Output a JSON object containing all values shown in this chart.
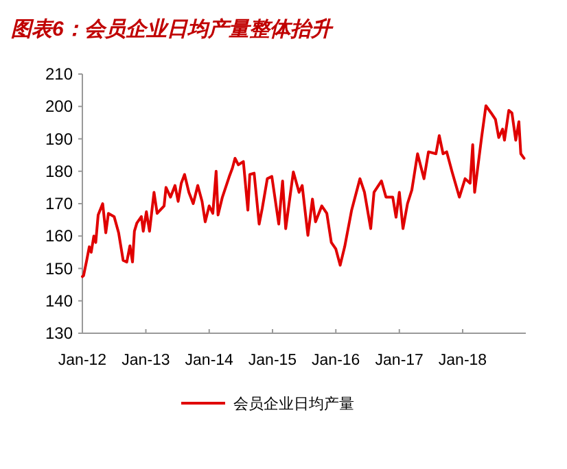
{
  "chart_data": {
    "type": "line",
    "title": "图表6：会员企业日均产量整体抬升",
    "x": [
      "2012-01-01",
      "2012-01-08",
      "2012-01-26",
      "2012-02-10",
      "2012-02-21",
      "2012-03-07",
      "2012-03-18",
      "2012-04-01",
      "2012-04-27",
      "2012-05-15",
      "2012-05-30",
      "2012-07-02",
      "2012-07-28",
      "2012-08-23",
      "2012-09-13",
      "2012-10-01",
      "2012-10-16",
      "2012-10-27",
      "2012-11-10",
      "2012-12-06",
      "2012-12-17",
      "2013-01-04",
      "2013-01-22",
      "2013-02-17",
      "2013-03-07",
      "2013-04-16",
      "2013-04-27",
      "2013-05-23",
      "2013-06-18",
      "2013-07-06",
      "2013-07-24",
      "2013-08-12",
      "2013-09-06",
      "2013-10-01",
      "2013-10-27",
      "2013-11-21",
      "2013-12-09",
      "2014-01-01",
      "2014-01-22",
      "2014-02-10",
      "2014-02-21",
      "2014-03-18",
      "2014-04-27",
      "2014-05-15",
      "2014-05-30",
      "2014-06-18",
      "2014-07-17",
      "2014-08-12",
      "2014-08-23",
      "2014-09-17",
      "2014-10-16",
      "2014-11-03",
      "2014-12-02",
      "2014-12-28",
      "2015-02-06",
      "2015-02-28",
      "2015-03-18",
      "2015-05-01",
      "2015-06-03",
      "2015-06-21",
      "2015-07-24",
      "2015-08-19",
      "2015-09-06",
      "2015-10-12",
      "2015-11-10",
      "2015-12-06",
      "2016-01-01",
      "2016-01-26",
      "2016-02-21",
      "2016-04-01",
      "2016-05-19",
      "2016-06-14",
      "2016-07-20",
      "2016-08-08",
      "2016-09-20",
      "2016-10-16",
      "2016-11-24",
      "2016-12-13",
      "2017-01-01",
      "2017-01-22",
      "2017-02-17",
      "2017-03-14",
      "2017-04-16",
      "2017-05-23",
      "2017-06-18",
      "2017-07-31",
      "2017-08-19",
      "2017-09-10",
      "2017-10-01",
      "2017-10-31",
      "2017-12-13",
      "2018-01-15",
      "2018-02-13",
      "2018-02-28",
      "2018-03-11",
      "2018-04-20",
      "2018-05-15",
      "2018-06-14",
      "2018-07-09",
      "2018-07-28",
      "2018-08-19",
      "2018-08-30",
      "2018-09-24",
      "2018-10-12",
      "2018-11-03",
      "2018-11-21",
      "2018-12-02",
      "2018-12-21"
    ],
    "series": [
      {
        "name": "会员企业日均产量",
        "color": "#e00000",
        "values": [
          147.5,
          147.8,
          152.5,
          156.7,
          155,
          160,
          158,
          166.5,
          170,
          161,
          167,
          166,
          161,
          152.5,
          152,
          157,
          152,
          161.5,
          164,
          166,
          161.5,
          167.5,
          161.5,
          173.5,
          167,
          169.3,
          175,
          172,
          175.6,
          170.7,
          176.3,
          179,
          173.5,
          170,
          175.6,
          170.7,
          164.4,
          169.3,
          167,
          180,
          166.5,
          172,
          178.4,
          181,
          184,
          182,
          183,
          168,
          179,
          179.4,
          163.7,
          168.6,
          177.7,
          178.4,
          163.7,
          177,
          162.3,
          179.8,
          173.5,
          175.6,
          160.2,
          171.4,
          164.4,
          169.3,
          167,
          158,
          156,
          151,
          156.7,
          168,
          177.7,
          173.5,
          162.3,
          173.5,
          177,
          172,
          172,
          165.8,
          173.5,
          162.3,
          170,
          174.2,
          185.4,
          177.7,
          186,
          185.4,
          191,
          185.4,
          186,
          180,
          172,
          177.7,
          176.3,
          188.2,
          173.5,
          190.4,
          200.2,
          198,
          196,
          190.4,
          193,
          189.6,
          198.8,
          198,
          189.6,
          195.3,
          185.4,
          184
        ]
      }
    ],
    "xlim": [
      "2012-01-01",
      "2018-12-31"
    ],
    "xticks": [
      {
        "value": "2012-01-01",
        "label": "Jan-12"
      },
      {
        "value": "2013-01-01",
        "label": "Jan-13"
      },
      {
        "value": "2014-01-01",
        "label": "Jan-14"
      },
      {
        "value": "2015-01-01",
        "label": "Jan-15"
      },
      {
        "value": "2016-01-01",
        "label": "Jan-16"
      },
      {
        "value": "2017-01-01",
        "label": "Jan-17"
      },
      {
        "value": "2018-01-01",
        "label": "Jan-18"
      }
    ],
    "ylim": [
      130,
      210
    ],
    "yticks": [
      130,
      140,
      150,
      160,
      170,
      180,
      190,
      200,
      210
    ],
    "grid": false,
    "legend": "bottom",
    "marker": "none",
    "line_style": "solid"
  }
}
